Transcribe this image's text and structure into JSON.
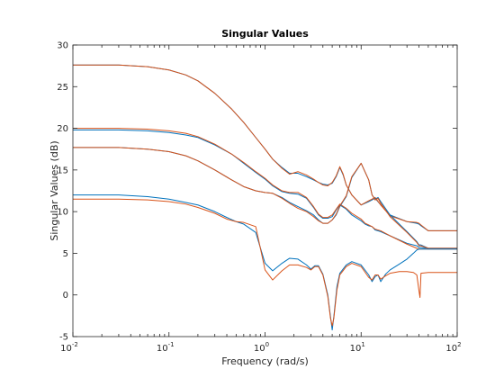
{
  "chart_data": {
    "type": "line",
    "title": "Singular Values",
    "xlabel": "Frequency (rad/s)",
    "ylabel": "Singular Values (dB)",
    "xscale": "log",
    "xlim": [
      0.01,
      100
    ],
    "ylim": [
      -5,
      30
    ],
    "grid": false,
    "legend": "none",
    "x_ticks": [
      0.01,
      0.1,
      1,
      10,
      100
    ],
    "x_tick_labels": [
      {
        "base": "10",
        "exp": "-2"
      },
      {
        "base": "10",
        "exp": "-1"
      },
      {
        "base": "10",
        "exp": "0"
      },
      {
        "base": "10",
        "exp": "1"
      },
      {
        "base": "10",
        "exp": "2"
      }
    ],
    "y_ticks": [
      -5,
      0,
      5,
      10,
      15,
      20,
      25,
      30
    ],
    "y_tick_labels": [
      "-5",
      "0",
      "5",
      "10",
      "15",
      "20",
      "25",
      "30"
    ],
    "series": [
      {
        "color": "#0072BD",
        "x": [
          0.01,
          0.03,
          0.06,
          0.1,
          0.15,
          0.2,
          0.3,
          0.45,
          0.6,
          0.8,
          1,
          1.2,
          1.5,
          1.8,
          2.2,
          2.7,
          3.2,
          3.6,
          4,
          4.5,
          5,
          5.5,
          6,
          6.5,
          7,
          8,
          10,
          12,
          14,
          16,
          20,
          30,
          38,
          40,
          42,
          50,
          100
        ],
        "y": [
          27.6,
          27.6,
          27.4,
          27.0,
          26.4,
          25.7,
          24.2,
          22.3,
          20.7,
          18.9,
          17.5,
          16.3,
          15.3,
          14.6,
          14.6,
          14.2,
          13.8,
          13.5,
          13.3,
          13.2,
          13.4,
          14.2,
          15.3,
          14.4,
          13.2,
          12.0,
          10.8,
          11.2,
          11.6,
          10.8,
          9.6,
          8.8,
          8.6,
          8.5,
          8.3,
          7.7,
          7.7
        ]
      },
      {
        "color": "#D95319",
        "x": [
          0.01,
          0.03,
          0.06,
          0.1,
          0.15,
          0.2,
          0.3,
          0.45,
          0.6,
          0.8,
          1,
          1.2,
          1.5,
          1.8,
          2.2,
          2.7,
          3.2,
          3.6,
          4,
          4.5,
          5,
          5.5,
          6,
          6.5,
          7,
          8,
          10,
          12,
          14,
          16,
          20,
          30,
          38,
          40,
          42,
          50,
          100
        ],
        "y": [
          27.6,
          27.6,
          27.4,
          27.0,
          26.4,
          25.7,
          24.2,
          22.3,
          20.7,
          18.9,
          17.5,
          16.3,
          15.2,
          14.5,
          14.8,
          14.4,
          13.9,
          13.5,
          13.2,
          13.1,
          13.5,
          14.3,
          15.4,
          14.5,
          13.2,
          12.0,
          10.8,
          11.3,
          11.7,
          10.8,
          9.5,
          8.8,
          8.7,
          8.6,
          8.4,
          7.7,
          7.7
        ]
      },
      {
        "color": "#0072BD",
        "x": [
          0.01,
          0.03,
          0.06,
          0.1,
          0.15,
          0.2,
          0.3,
          0.45,
          0.6,
          0.8,
          1,
          1.2,
          1.5,
          1.8,
          2.2,
          2.7,
          3.2,
          3.6,
          4,
          4.5,
          5,
          5.5,
          6,
          7,
          8,
          10,
          11,
          12,
          13,
          14,
          16,
          20,
          30,
          38,
          40,
          42,
          50,
          100
        ],
        "y": [
          19.8,
          19.8,
          19.7,
          19.5,
          19.2,
          18.9,
          18.0,
          16.9,
          15.8,
          14.7,
          13.9,
          13.1,
          12.4,
          12.2,
          12.1,
          11.6,
          10.5,
          9.6,
          9.2,
          9.2,
          9.4,
          10.2,
          10.8,
          10.3,
          9.6,
          8.9,
          8.5,
          8.3,
          8.2,
          7.8,
          7.6,
          7.1,
          6.2,
          5.9,
          5.7,
          5.7,
          5.6,
          5.6
        ]
      },
      {
        "color": "#D95319",
        "x": [
          0.01,
          0.03,
          0.06,
          0.1,
          0.15,
          0.2,
          0.3,
          0.45,
          0.6,
          0.8,
          1,
          1.2,
          1.5,
          1.8,
          2.2,
          2.7,
          3.2,
          3.6,
          4,
          4.5,
          5,
          5.5,
          6,
          7,
          8,
          10,
          11,
          12,
          13,
          14,
          16,
          20,
          30,
          38,
          40,
          42,
          50,
          100
        ],
        "y": [
          20.0,
          20.0,
          19.9,
          19.7,
          19.4,
          19.0,
          18.1,
          16.9,
          15.9,
          14.8,
          14.0,
          13.2,
          12.5,
          12.3,
          12.3,
          11.7,
          10.6,
          9.7,
          9.3,
          9.3,
          9.6,
          10.3,
          10.9,
          10.4,
          9.8,
          9.1,
          8.6,
          8.4,
          8.2,
          7.9,
          7.7,
          7.1,
          6.1,
          5.6,
          5.5,
          5.5,
          5.5,
          5.5
        ]
      },
      {
        "color": "#0072BD",
        "x": [
          0.01,
          0.03,
          0.06,
          0.1,
          0.15,
          0.2,
          0.3,
          0.45,
          0.6,
          0.8,
          1,
          1.2,
          1.5,
          1.8,
          2.2,
          2.7,
          3.2,
          3.6,
          4,
          4.5,
          5,
          5.5,
          6,
          7,
          8,
          10,
          12,
          13,
          14,
          15,
          16,
          20,
          30,
          38,
          40,
          42,
          50,
          100
        ],
        "y": [
          17.7,
          17.7,
          17.5,
          17.2,
          16.7,
          16.1,
          15.0,
          13.8,
          13.0,
          12.5,
          12.3,
          12.2,
          11.7,
          11.1,
          10.6,
          10.1,
          9.6,
          9.0,
          8.6,
          8.6,
          9.0,
          9.6,
          10.6,
          11.8,
          14.1,
          15.8,
          13.8,
          12.0,
          11.5,
          11.7,
          11.2,
          9.6,
          7.6,
          6.4,
          6.0,
          6.0,
          5.6,
          5.6
        ]
      },
      {
        "color": "#D95319",
        "x": [
          0.01,
          0.03,
          0.06,
          0.1,
          0.15,
          0.2,
          0.3,
          0.45,
          0.6,
          0.8,
          1,
          1.2,
          1.5,
          1.8,
          2.2,
          2.7,
          3.2,
          3.6,
          4,
          4.5,
          5,
          5.5,
          6,
          7,
          8,
          10,
          12,
          13,
          14,
          15,
          16,
          20,
          30,
          38,
          40,
          42,
          50,
          100
        ],
        "y": [
          17.7,
          17.7,
          17.5,
          17.2,
          16.7,
          16.1,
          15.0,
          13.8,
          13.0,
          12.5,
          12.3,
          12.2,
          11.6,
          11.0,
          10.4,
          10.0,
          9.4,
          8.9,
          8.6,
          8.6,
          9.0,
          9.7,
          10.7,
          11.9,
          14.2,
          15.8,
          13.8,
          12.0,
          11.4,
          11.6,
          11.0,
          9.4,
          7.5,
          6.3,
          5.9,
          5.9,
          5.6,
          5.6
        ]
      },
      {
        "color": "#0072BD",
        "x": [
          0.01,
          0.03,
          0.06,
          0.1,
          0.15,
          0.2,
          0.3,
          0.4,
          0.5,
          0.6,
          0.8,
          1,
          1.2,
          1.5,
          1.8,
          2.2,
          2.7,
          3,
          3.3,
          3.6,
          4,
          4.5,
          4.8,
          5,
          5.2,
          5.6,
          6,
          7,
          8,
          10,
          12,
          13,
          14,
          15,
          16,
          18,
          20,
          25,
          30,
          35,
          38,
          40,
          42,
          50,
          100
        ],
        "y": [
          12.0,
          12.0,
          11.8,
          11.5,
          11.1,
          10.8,
          10.0,
          9.3,
          8.8,
          8.5,
          7.5,
          3.8,
          2.9,
          3.8,
          4.4,
          4.3,
          3.6,
          3.1,
          3.5,
          3.5,
          2.5,
          0.0,
          -2.6,
          -4.2,
          -2.6,
          1.0,
          2.6,
          3.6,
          4.0,
          3.6,
          2.4,
          1.6,
          2.2,
          2.4,
          1.6,
          2.5,
          3.0,
          3.7,
          4.3,
          5.0,
          5.4,
          5.5,
          5.5,
          5.5,
          5.5
        ]
      },
      {
        "color": "#D95319",
        "x": [
          0.01,
          0.03,
          0.06,
          0.1,
          0.15,
          0.2,
          0.3,
          0.4,
          0.5,
          0.6,
          0.8,
          1,
          1.2,
          1.5,
          1.8,
          2.2,
          2.7,
          3,
          3.3,
          3.6,
          4,
          4.5,
          4.8,
          5,
          5.2,
          5.6,
          6,
          7,
          8,
          10,
          12,
          13,
          14,
          15,
          16,
          18,
          20,
          25,
          30,
          35,
          38,
          40,
          41,
          42,
          50,
          100
        ],
        "y": [
          11.5,
          11.5,
          11.4,
          11.2,
          10.9,
          10.5,
          9.8,
          9.1,
          8.8,
          8.7,
          8.2,
          3.0,
          1.8,
          2.9,
          3.6,
          3.6,
          3.3,
          3.0,
          3.4,
          3.4,
          2.4,
          -0.2,
          -2.8,
          -3.7,
          -2.8,
          0.6,
          2.4,
          3.4,
          3.8,
          3.4,
          2.1,
          1.8,
          2.4,
          2.4,
          1.9,
          2.3,
          2.6,
          2.8,
          2.8,
          2.7,
          2.4,
          0.5,
          -0.3,
          2.6,
          2.7,
          2.7
        ]
      }
    ]
  }
}
